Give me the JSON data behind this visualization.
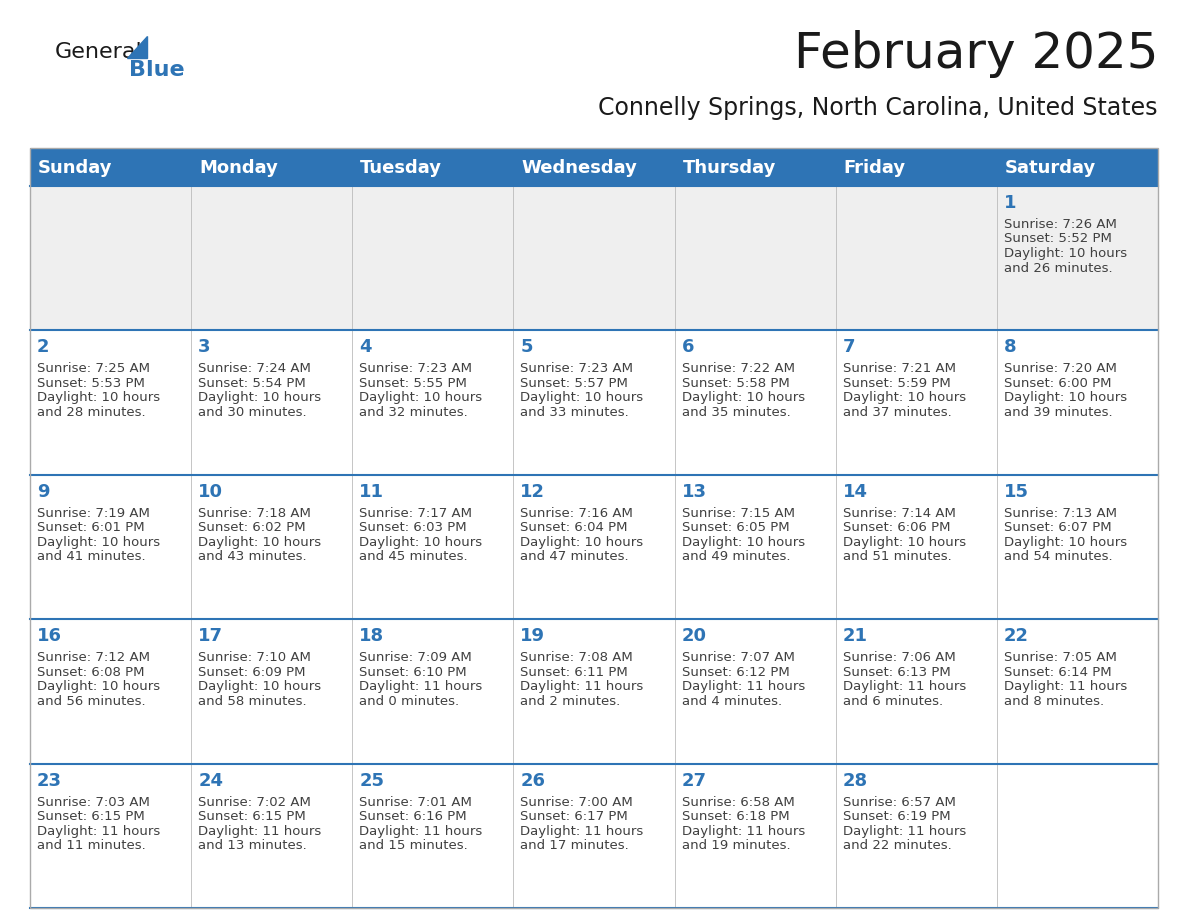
{
  "title": "February 2025",
  "subtitle": "Connelly Springs, North Carolina, United States",
  "header_bg": "#2E74B5",
  "header_text_color": "#FFFFFF",
  "header_days": [
    "Sunday",
    "Monday",
    "Tuesday",
    "Wednesday",
    "Thursday",
    "Friday",
    "Saturday"
  ],
  "row1_bg": "#EFEFEF",
  "row_bg": "#FFFFFF",
  "separator_color": "#2E74B5",
  "day_number_color": "#2E74B5",
  "info_text_color": "#404040",
  "title_fontsize": 36,
  "subtitle_fontsize": 17,
  "header_fontsize": 13,
  "day_num_fontsize": 13,
  "info_fontsize": 9.5,
  "calendar_data": [
    [
      null,
      null,
      null,
      null,
      null,
      null,
      {
        "day": "1",
        "sunrise": "7:26 AM",
        "sunset": "5:52 PM",
        "daylight_line1": "10 hours",
        "daylight_line2": "and 26 minutes."
      }
    ],
    [
      {
        "day": "2",
        "sunrise": "7:25 AM",
        "sunset": "5:53 PM",
        "daylight_line1": "10 hours",
        "daylight_line2": "and 28 minutes."
      },
      {
        "day": "3",
        "sunrise": "7:24 AM",
        "sunset": "5:54 PM",
        "daylight_line1": "10 hours",
        "daylight_line2": "and 30 minutes."
      },
      {
        "day": "4",
        "sunrise": "7:23 AM",
        "sunset": "5:55 PM",
        "daylight_line1": "10 hours",
        "daylight_line2": "and 32 minutes."
      },
      {
        "day": "5",
        "sunrise": "7:23 AM",
        "sunset": "5:57 PM",
        "daylight_line1": "10 hours",
        "daylight_line2": "and 33 minutes."
      },
      {
        "day": "6",
        "sunrise": "7:22 AM",
        "sunset": "5:58 PM",
        "daylight_line1": "10 hours",
        "daylight_line2": "and 35 minutes."
      },
      {
        "day": "7",
        "sunrise": "7:21 AM",
        "sunset": "5:59 PM",
        "daylight_line1": "10 hours",
        "daylight_line2": "and 37 minutes."
      },
      {
        "day": "8",
        "sunrise": "7:20 AM",
        "sunset": "6:00 PM",
        "daylight_line1": "10 hours",
        "daylight_line2": "and 39 minutes."
      }
    ],
    [
      {
        "day": "9",
        "sunrise": "7:19 AM",
        "sunset": "6:01 PM",
        "daylight_line1": "10 hours",
        "daylight_line2": "and 41 minutes."
      },
      {
        "day": "10",
        "sunrise": "7:18 AM",
        "sunset": "6:02 PM",
        "daylight_line1": "10 hours",
        "daylight_line2": "and 43 minutes."
      },
      {
        "day": "11",
        "sunrise": "7:17 AM",
        "sunset": "6:03 PM",
        "daylight_line1": "10 hours",
        "daylight_line2": "and 45 minutes."
      },
      {
        "day": "12",
        "sunrise": "7:16 AM",
        "sunset": "6:04 PM",
        "daylight_line1": "10 hours",
        "daylight_line2": "and 47 minutes."
      },
      {
        "day": "13",
        "sunrise": "7:15 AM",
        "sunset": "6:05 PM",
        "daylight_line1": "10 hours",
        "daylight_line2": "and 49 minutes."
      },
      {
        "day": "14",
        "sunrise": "7:14 AM",
        "sunset": "6:06 PM",
        "daylight_line1": "10 hours",
        "daylight_line2": "and 51 minutes."
      },
      {
        "day": "15",
        "sunrise": "7:13 AM",
        "sunset": "6:07 PM",
        "daylight_line1": "10 hours",
        "daylight_line2": "and 54 minutes."
      }
    ],
    [
      {
        "day": "16",
        "sunrise": "7:12 AM",
        "sunset": "6:08 PM",
        "daylight_line1": "10 hours",
        "daylight_line2": "and 56 minutes."
      },
      {
        "day": "17",
        "sunrise": "7:10 AM",
        "sunset": "6:09 PM",
        "daylight_line1": "10 hours",
        "daylight_line2": "and 58 minutes."
      },
      {
        "day": "18",
        "sunrise": "7:09 AM",
        "sunset": "6:10 PM",
        "daylight_line1": "11 hours",
        "daylight_line2": "and 0 minutes."
      },
      {
        "day": "19",
        "sunrise": "7:08 AM",
        "sunset": "6:11 PM",
        "daylight_line1": "11 hours",
        "daylight_line2": "and 2 minutes."
      },
      {
        "day": "20",
        "sunrise": "7:07 AM",
        "sunset": "6:12 PM",
        "daylight_line1": "11 hours",
        "daylight_line2": "and 4 minutes."
      },
      {
        "day": "21",
        "sunrise": "7:06 AM",
        "sunset": "6:13 PM",
        "daylight_line1": "11 hours",
        "daylight_line2": "and 6 minutes."
      },
      {
        "day": "22",
        "sunrise": "7:05 AM",
        "sunset": "6:14 PM",
        "daylight_line1": "11 hours",
        "daylight_line2": "and 8 minutes."
      }
    ],
    [
      {
        "day": "23",
        "sunrise": "7:03 AM",
        "sunset": "6:15 PM",
        "daylight_line1": "11 hours",
        "daylight_line2": "and 11 minutes."
      },
      {
        "day": "24",
        "sunrise": "7:02 AM",
        "sunset": "6:15 PM",
        "daylight_line1": "11 hours",
        "daylight_line2": "and 13 minutes."
      },
      {
        "day": "25",
        "sunrise": "7:01 AM",
        "sunset": "6:16 PM",
        "daylight_line1": "11 hours",
        "daylight_line2": "and 15 minutes."
      },
      {
        "day": "26",
        "sunrise": "7:00 AM",
        "sunset": "6:17 PM",
        "daylight_line1": "11 hours",
        "daylight_line2": "and 17 minutes."
      },
      {
        "day": "27",
        "sunrise": "6:58 AM",
        "sunset": "6:18 PM",
        "daylight_line1": "11 hours",
        "daylight_line2": "and 19 minutes."
      },
      {
        "day": "28",
        "sunrise": "6:57 AM",
        "sunset": "6:19 PM",
        "daylight_line1": "11 hours",
        "daylight_line2": "and 22 minutes."
      },
      null
    ]
  ]
}
